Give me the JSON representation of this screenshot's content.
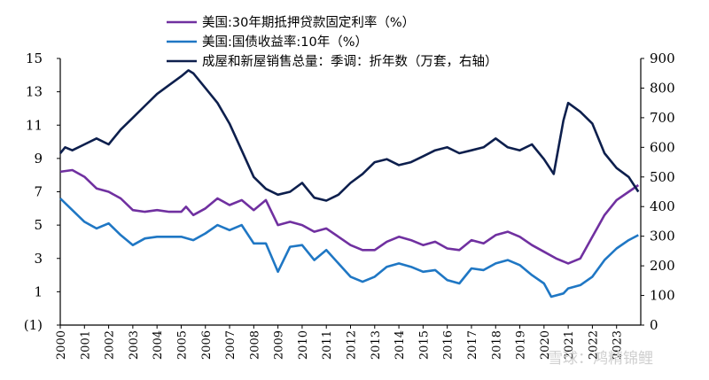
{
  "chart_data": {
    "type": "line",
    "title": "",
    "xlabel": "",
    "ylabel_left": "",
    "ylabel_right": "",
    "left_axis": {
      "min": -1,
      "max": 15,
      "ticks": [
        {
          "v": 15,
          "label": "15"
        },
        {
          "v": 13,
          "label": "13"
        },
        {
          "v": 11,
          "label": "11"
        },
        {
          "v": 9,
          "label": "9"
        },
        {
          "v": 7,
          "label": "7"
        },
        {
          "v": 5,
          "label": "5"
        },
        {
          "v": 3,
          "label": "3"
        },
        {
          "v": 1,
          "label": "1"
        },
        {
          "v": -1,
          "label": "(1)"
        }
      ]
    },
    "right_axis": {
      "min": 0,
      "max": 900,
      "ticks": [
        "900",
        "800",
        "700",
        "600",
        "500",
        "400",
        "300",
        "200",
        "100",
        "0"
      ]
    },
    "x_axis": {
      "min": 2000,
      "max": 2024,
      "ticks": [
        "2000",
        "2001",
        "2002",
        "2003",
        "2004",
        "2005",
        "2006",
        "2007",
        "2008",
        "2009",
        "2010",
        "2011",
        "2012",
        "2013",
        "2014",
        "2015",
        "2016",
        "2017",
        "2018",
        "2019",
        "2020",
        "2021",
        "2022",
        "2023"
      ]
    },
    "legend_placement": "top-center",
    "grid": false,
    "colors": {
      "axis": "#000000",
      "neg_label": "#c00000"
    },
    "series": [
      {
        "name": "美国:30年期抵押贷款固定利率（%）",
        "axis": "left",
        "color": "#7030a0",
        "points": [
          [
            2000.0,
            8.2
          ],
          [
            2000.5,
            8.3
          ],
          [
            2001.0,
            7.9
          ],
          [
            2001.5,
            7.2
          ],
          [
            2002.0,
            7.0
          ],
          [
            2002.5,
            6.6
          ],
          [
            2003.0,
            5.9
          ],
          [
            2003.5,
            5.8
          ],
          [
            2004.0,
            5.9
          ],
          [
            2004.5,
            5.8
          ],
          [
            2005.0,
            5.8
          ],
          [
            2005.2,
            6.1
          ],
          [
            2005.5,
            5.6
          ],
          [
            2006.0,
            6.0
          ],
          [
            2006.5,
            6.6
          ],
          [
            2007.0,
            6.2
          ],
          [
            2007.5,
            6.5
          ],
          [
            2008.0,
            5.9
          ],
          [
            2008.5,
            6.5
          ],
          [
            2009.0,
            5.0
          ],
          [
            2009.5,
            5.2
          ],
          [
            2010.0,
            5.0
          ],
          [
            2010.5,
            4.6
          ],
          [
            2011.0,
            4.8
          ],
          [
            2011.5,
            4.3
          ],
          [
            2012.0,
            3.8
          ],
          [
            2012.5,
            3.5
          ],
          [
            2013.0,
            3.5
          ],
          [
            2013.5,
            4.0
          ],
          [
            2014.0,
            4.3
          ],
          [
            2014.5,
            4.1
          ],
          [
            2015.0,
            3.8
          ],
          [
            2015.5,
            4.0
          ],
          [
            2016.0,
            3.6
          ],
          [
            2016.5,
            3.5
          ],
          [
            2017.0,
            4.1
          ],
          [
            2017.5,
            3.9
          ],
          [
            2018.0,
            4.4
          ],
          [
            2018.5,
            4.6
          ],
          [
            2019.0,
            4.3
          ],
          [
            2019.5,
            3.8
          ],
          [
            2020.0,
            3.4
          ],
          [
            2020.5,
            3.0
          ],
          [
            2021.0,
            2.7
          ],
          [
            2021.5,
            3.0
          ],
          [
            2022.0,
            4.3
          ],
          [
            2022.5,
            5.6
          ],
          [
            2023.0,
            6.5
          ],
          [
            2023.5,
            7.0
          ],
          [
            2023.9,
            7.4
          ]
        ]
      },
      {
        "name": "美国:国债收益率:10年（%）",
        "axis": "left",
        "color": "#1f77c4",
        "points": [
          [
            2000.0,
            6.6
          ],
          [
            2000.5,
            5.9
          ],
          [
            2001.0,
            5.2
          ],
          [
            2001.5,
            4.8
          ],
          [
            2002.0,
            5.1
          ],
          [
            2002.5,
            4.4
          ],
          [
            2003.0,
            3.8
          ],
          [
            2003.5,
            4.2
          ],
          [
            2004.0,
            4.3
          ],
          [
            2004.5,
            4.3
          ],
          [
            2005.0,
            4.3
          ],
          [
            2005.5,
            4.1
          ],
          [
            2006.0,
            4.5
          ],
          [
            2006.5,
            5.0
          ],
          [
            2007.0,
            4.7
          ],
          [
            2007.5,
            5.0
          ],
          [
            2008.0,
            3.9
          ],
          [
            2008.5,
            3.9
          ],
          [
            2009.0,
            2.2
          ],
          [
            2009.5,
            3.7
          ],
          [
            2010.0,
            3.8
          ],
          [
            2010.5,
            2.9
          ],
          [
            2011.0,
            3.5
          ],
          [
            2011.5,
            2.7
          ],
          [
            2012.0,
            1.9
          ],
          [
            2012.5,
            1.6
          ],
          [
            2013.0,
            1.9
          ],
          [
            2013.5,
            2.5
          ],
          [
            2014.0,
            2.7
          ],
          [
            2014.5,
            2.5
          ],
          [
            2015.0,
            2.2
          ],
          [
            2015.5,
            2.3
          ],
          [
            2016.0,
            1.7
          ],
          [
            2016.5,
            1.5
          ],
          [
            2017.0,
            2.4
          ],
          [
            2017.5,
            2.3
          ],
          [
            2018.0,
            2.7
          ],
          [
            2018.5,
            2.9
          ],
          [
            2019.0,
            2.6
          ],
          [
            2019.5,
            2.0
          ],
          [
            2020.0,
            1.5
          ],
          [
            2020.3,
            0.7
          ],
          [
            2020.8,
            0.9
          ],
          [
            2021.0,
            1.2
          ],
          [
            2021.5,
            1.4
          ],
          [
            2022.0,
            1.9
          ],
          [
            2022.5,
            2.9
          ],
          [
            2023.0,
            3.6
          ],
          [
            2023.5,
            4.1
          ],
          [
            2023.9,
            4.4
          ]
        ]
      },
      {
        "name": "成屋和新屋销售总量：季调：折年数（万套，右轴）",
        "axis": "right",
        "color": "#0d1f4d",
        "points": [
          [
            2000.0,
            580
          ],
          [
            2000.2,
            600
          ],
          [
            2000.5,
            590
          ],
          [
            2001.0,
            610
          ],
          [
            2001.5,
            630
          ],
          [
            2002.0,
            610
          ],
          [
            2002.5,
            660
          ],
          [
            2003.0,
            700
          ],
          [
            2003.5,
            740
          ],
          [
            2004.0,
            780
          ],
          [
            2004.5,
            810
          ],
          [
            2005.0,
            840
          ],
          [
            2005.3,
            860
          ],
          [
            2005.5,
            850
          ],
          [
            2006.0,
            800
          ],
          [
            2006.5,
            750
          ],
          [
            2007.0,
            680
          ],
          [
            2007.5,
            590
          ],
          [
            2008.0,
            500
          ],
          [
            2008.5,
            460
          ],
          [
            2009.0,
            440
          ],
          [
            2009.5,
            450
          ],
          [
            2010.0,
            480
          ],
          [
            2010.5,
            430
          ],
          [
            2011.0,
            420
          ],
          [
            2011.5,
            440
          ],
          [
            2012.0,
            480
          ],
          [
            2012.5,
            510
          ],
          [
            2013.0,
            550
          ],
          [
            2013.5,
            560
          ],
          [
            2014.0,
            540
          ],
          [
            2014.5,
            550
          ],
          [
            2015.0,
            570
          ],
          [
            2015.5,
            590
          ],
          [
            2016.0,
            600
          ],
          [
            2016.5,
            580
          ],
          [
            2017.0,
            590
          ],
          [
            2017.5,
            600
          ],
          [
            2018.0,
            630
          ],
          [
            2018.5,
            600
          ],
          [
            2019.0,
            590
          ],
          [
            2019.5,
            610
          ],
          [
            2020.0,
            560
          ],
          [
            2020.4,
            510
          ],
          [
            2020.8,
            690
          ],
          [
            2021.0,
            750
          ],
          [
            2021.5,
            720
          ],
          [
            2022.0,
            680
          ],
          [
            2022.5,
            580
          ],
          [
            2023.0,
            530
          ],
          [
            2023.5,
            500
          ],
          [
            2023.9,
            450
          ]
        ]
      }
    ]
  },
  "watermark": "雪球：鸿精锦鲤"
}
